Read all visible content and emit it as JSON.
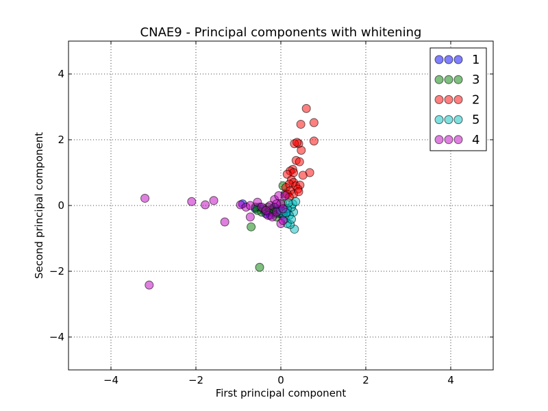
{
  "chart_data": {
    "type": "scatter",
    "title": "CNAE9 - Principal components with whitening",
    "xlabel": "First principal component",
    "ylabel": "Second principal component",
    "xlim": [
      -5,
      5
    ],
    "ylim": [
      -5,
      5
    ],
    "xticks": [
      -4,
      -2,
      0,
      2,
      4
    ],
    "yticks": [
      -4,
      -2,
      0,
      2,
      4
    ],
    "xtick_labels": [
      "−4",
      "−2",
      "0",
      "2",
      "4"
    ],
    "ytick_labels": [
      "−4",
      "−2",
      "0",
      "2",
      "4"
    ],
    "grid": true,
    "legend_position": "top-right",
    "series": [
      {
        "name": "1",
        "color": "#0000ff",
        "points": [
          [
            -0.9,
            0.05
          ],
          [
            -0.6,
            -0.1
          ],
          [
            -0.4,
            -0.15
          ],
          [
            -0.3,
            -0.2
          ],
          [
            -0.2,
            -0.1
          ],
          [
            -0.1,
            -0.25
          ],
          [
            0.0,
            -0.2
          ],
          [
            0.1,
            -0.1
          ],
          [
            -0.5,
            -0.05
          ],
          [
            -0.25,
            -0.3
          ],
          [
            0.05,
            -0.3
          ],
          [
            -0.15,
            -0.05
          ],
          [
            0.15,
            -0.2
          ],
          [
            -0.35,
            -0.25
          ],
          [
            -0.05,
            -0.12
          ]
        ]
      },
      {
        "name": "3",
        "color": "#008000",
        "points": [
          [
            -0.5,
            -1.88
          ],
          [
            -0.7,
            -0.65
          ],
          [
            -0.45,
            -0.2
          ],
          [
            -0.3,
            -0.05
          ],
          [
            -0.2,
            -0.2
          ],
          [
            0.05,
            0.6
          ],
          [
            0.1,
            0.35
          ],
          [
            -0.4,
            -0.1
          ],
          [
            -0.25,
            -0.15
          ],
          [
            -0.1,
            -0.35
          ],
          [
            0.0,
            -0.25
          ],
          [
            -0.55,
            -0.15
          ],
          [
            -0.6,
            -0.05
          ],
          [
            0.05,
            0.05
          ],
          [
            -0.15,
            -0.05
          ]
        ]
      },
      {
        "name": "2",
        "color": "#ff0000",
        "points": [
          [
            0.6,
            2.95
          ],
          [
            0.78,
            2.52
          ],
          [
            0.47,
            2.47
          ],
          [
            0.78,
            1.96
          ],
          [
            0.42,
            1.88
          ],
          [
            0.32,
            1.88
          ],
          [
            0.48,
            1.68
          ],
          [
            0.38,
            1.92
          ],
          [
            0.36,
            1.37
          ],
          [
            0.44,
            1.33
          ],
          [
            0.28,
            1.1
          ],
          [
            0.22,
            1.05
          ],
          [
            0.3,
            1.0
          ],
          [
            0.15,
            0.95
          ],
          [
            0.68,
            1.0
          ],
          [
            0.52,
            0.92
          ],
          [
            0.25,
            0.78
          ],
          [
            0.3,
            0.7
          ],
          [
            0.2,
            0.65
          ],
          [
            0.35,
            0.6
          ],
          [
            0.45,
            0.62
          ],
          [
            0.4,
            0.5
          ],
          [
            0.12,
            0.55
          ],
          [
            0.22,
            0.45
          ],
          [
            0.3,
            0.35
          ],
          [
            0.42,
            0.42
          ],
          [
            0.15,
            0.35
          ],
          [
            0.2,
            0.25
          ]
        ]
      },
      {
        "name": "5",
        "color": "#00bfbf",
        "points": [
          [
            0.32,
            -0.72
          ],
          [
            0.22,
            -0.58
          ],
          [
            0.15,
            -0.55
          ],
          [
            0.3,
            -0.2
          ],
          [
            0.25,
            -0.05
          ],
          [
            0.1,
            -0.4
          ],
          [
            0.2,
            -0.3
          ],
          [
            0.05,
            -0.25
          ],
          [
            0.28,
            0.05
          ],
          [
            0.15,
            -0.1
          ],
          [
            0.35,
            0.12
          ],
          [
            0.18,
            0.08
          ],
          [
            0.0,
            -0.15
          ],
          [
            0.12,
            -0.22
          ],
          [
            0.25,
            -0.42
          ]
        ]
      },
      {
        "name": "4",
        "color": "#bf00bf",
        "points": [
          [
            -3.2,
            0.22
          ],
          [
            -3.1,
            -2.42
          ],
          [
            -2.1,
            0.12
          ],
          [
            -1.78,
            0.02
          ],
          [
            -1.58,
            0.15
          ],
          [
            -1.32,
            -0.5
          ],
          [
            -0.95,
            0.02
          ],
          [
            -0.82,
            -0.05
          ],
          [
            -0.72,
            -0.35
          ],
          [
            -0.72,
            0.0
          ],
          [
            -0.55,
            0.1
          ],
          [
            -0.45,
            -0.05
          ],
          [
            -0.3,
            -0.3
          ],
          [
            -0.2,
            -0.35
          ],
          [
            -0.15,
            0.18
          ],
          [
            -0.1,
            -0.2
          ],
          [
            0.0,
            -0.55
          ],
          [
            0.05,
            -0.45
          ],
          [
            -0.05,
            0.3
          ],
          [
            0.1,
            0.3
          ],
          [
            0.0,
            0.05
          ],
          [
            -0.25,
            0.0
          ],
          [
            -0.35,
            -0.15
          ],
          [
            0.05,
            -0.1
          ],
          [
            -0.1,
            0.05
          ]
        ]
      }
    ]
  }
}
